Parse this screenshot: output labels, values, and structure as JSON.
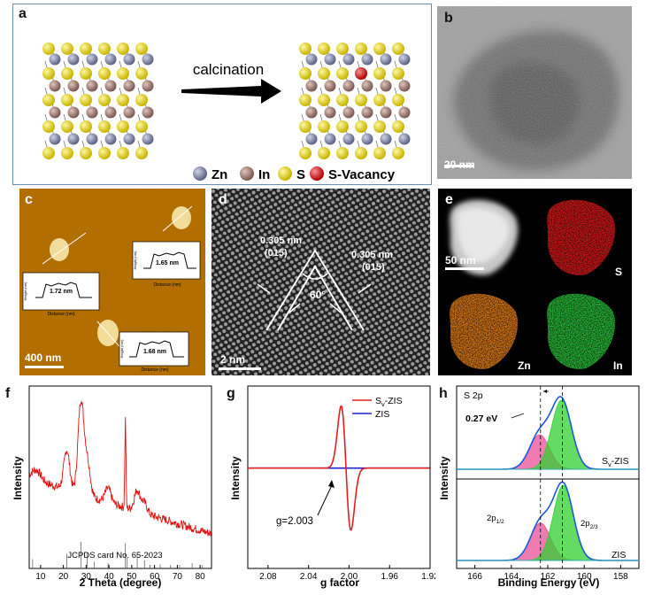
{
  "panels": {
    "a": {
      "label": "a",
      "arrow_label": "calcination",
      "legend": [
        {
          "name": "Zn",
          "color": "#8a8fa8"
        },
        {
          "name": "In",
          "color": "#a07f78"
        },
        {
          "name": "S",
          "color": "#e2d21a"
        },
        {
          "name": "S-Vacancy",
          "color": "#e01010"
        }
      ]
    },
    "b": {
      "label": "b",
      "scale_bar": "20 nm"
    },
    "c": {
      "label": "c",
      "scale_bar": "400 nm",
      "profiles": [
        {
          "height": "1.72 nm",
          "ylabel": "Height (nm)",
          "xlabel": "Distance (nm)"
        },
        {
          "height": "1.65 nm",
          "ylabel": "Height (nm)",
          "xlabel": "Distance (nm)"
        },
        {
          "height": "1.68 nm",
          "ylabel": "Height (nm)",
          "xlabel": "Distance (nm)"
        }
      ]
    },
    "d": {
      "label": "d",
      "scale_bar": "2 nm",
      "spacing_left": "0.305 nm",
      "plane_left": "(015)",
      "spacing_right": "0.305 nm",
      "plane_right": "(015)",
      "angle": "60°"
    },
    "e": {
      "label": "e",
      "scale_bar": "50 nm",
      "maps": [
        {
          "element": "S",
          "color": "#d01818"
        },
        {
          "element": "Zn",
          "color": "#d87818"
        },
        {
          "element": "In",
          "color": "#28b838"
        }
      ]
    },
    "h": {
      "label": "h",
      "title": "S 2p",
      "shift": "0.27 eV",
      "sample_top": "S",
      "sample_top_sub": "v",
      "sample_top_suffix": "-ZIS",
      "sample_bottom": "ZIS",
      "peak_left": "2p",
      "peak_left_sub": "1/2",
      "peak_right": "2p",
      "peak_right_sub": "2/3"
    }
  },
  "chart_data": [
    {
      "panel": "f",
      "type": "line",
      "label": "f",
      "xlabel": "2 Theta (degree)",
      "ylabel": "Intensity",
      "xlim": [
        5,
        85
      ],
      "xticks": [
        10,
        20,
        30,
        40,
        50,
        60,
        70,
        80
      ],
      "annotation": "JCPDS card No. 65-2023",
      "pattern_x": [
        10,
        21,
        27.7,
        29,
        33,
        39.5,
        47.2,
        52.3,
        56,
        65,
        76
      ],
      "pattern_peaks": [
        {
          "x": 21.5,
          "y": 0.58
        },
        {
          "x": 27.7,
          "y": 0.88
        },
        {
          "x": 30.5,
          "y": 0.55
        },
        {
          "x": 39.6,
          "y": 0.43
        },
        {
          "x": 47.2,
          "y": 0.86
        },
        {
          "x": 52.4,
          "y": 0.47
        },
        {
          "x": 55.5,
          "y": 0.41
        }
      ],
      "reference_lines": [
        {
          "x": 6.5,
          "h": 0.35
        },
        {
          "x": 21.5,
          "h": 0.55
        },
        {
          "x": 27.7,
          "h": 1.0
        },
        {
          "x": 30.5,
          "h": 0.6
        },
        {
          "x": 33.5,
          "h": 0.25
        },
        {
          "x": 39.6,
          "h": 0.2
        },
        {
          "x": 47.2,
          "h": 0.95
        },
        {
          "x": 48.0,
          "h": 0.4
        },
        {
          "x": 52.4,
          "h": 0.45
        },
        {
          "x": 55.6,
          "h": 0.3
        },
        {
          "x": 58.0,
          "h": 0.15
        },
        {
          "x": 62.5,
          "h": 0.15
        },
        {
          "x": 67.0,
          "h": 0.12
        },
        {
          "x": 71.0,
          "h": 0.12
        },
        {
          "x": 76.5,
          "h": 0.2
        },
        {
          "x": 81.0,
          "h": 0.12
        }
      ]
    },
    {
      "panel": "g",
      "type": "line",
      "label": "g",
      "xlabel": "g factor",
      "ylabel": "Intensity",
      "xlim": [
        2.1,
        1.92
      ],
      "xticks": [
        2.08,
        2.04,
        2.0,
        1.96,
        1.92
      ],
      "xtick_labels": [
        "2.08",
        "2.04",
        "2.00",
        "1.96",
        "1.92"
      ],
      "annotation": "g=2.003",
      "series": [
        {
          "name": "Sv-ZIS",
          "color": "#e02020",
          "g_center": 2.003,
          "amplitude": 1.0
        },
        {
          "name": "ZIS",
          "color": "#2020d0",
          "g_center": 2.003,
          "amplitude": 0.0
        }
      ],
      "legend": [
        "S",
        "v",
        "-ZIS",
        "ZIS"
      ]
    },
    {
      "panel": "h",
      "type": "line",
      "label": "h",
      "xlabel": "Binding Energy (eV)",
      "ylabel": "Intensity",
      "xlim": [
        167,
        157
      ],
      "xticks": [
        166,
        164,
        162,
        160,
        158
      ],
      "dashed_lines": [
        162.4,
        161.2
      ],
      "series": [
        {
          "name": "Sv-ZIS",
          "peaks": [
            {
              "center": 162.45,
              "amp": 0.5,
              "color": "#e8509a"
            },
            {
              "center": 161.25,
              "amp": 1.0,
              "color": "#30d030"
            }
          ]
        },
        {
          "name": "ZIS",
          "peaks": [
            {
              "center": 162.4,
              "amp": 0.5,
              "color": "#e8509a"
            },
            {
              "center": 161.15,
              "amp": 1.0,
              "color": "#30d030"
            }
          ]
        }
      ]
    }
  ]
}
